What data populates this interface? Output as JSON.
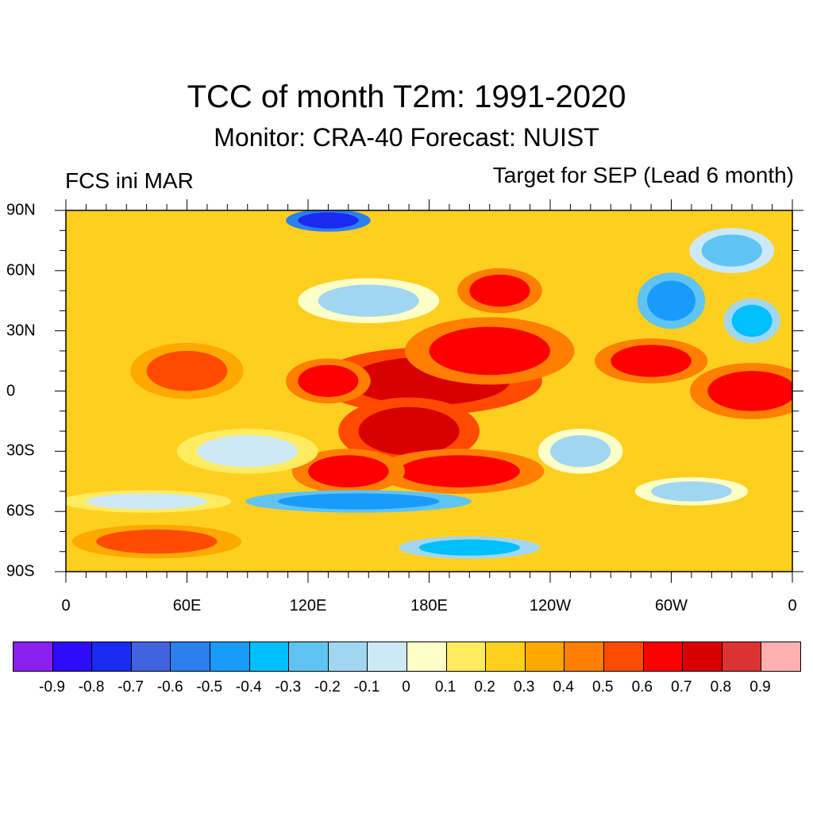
{
  "title": "TCC of month T2m: 1991-2020",
  "subtitle": "Monitor: CRA-40   Forecast: NUIST",
  "left_label": "FCS ini MAR",
  "right_label": "Target for SEP (Lead 6 month)",
  "y_ticks": [
    {
      "label": "90N",
      "lat": 90
    },
    {
      "label": "60N",
      "lat": 60
    },
    {
      "label": "30N",
      "lat": 30
    },
    {
      "label": "0",
      "lat": 0
    },
    {
      "label": "30S",
      "lat": -30
    },
    {
      "label": "60S",
      "lat": -60
    },
    {
      "label": "90S",
      "lat": -90
    }
  ],
  "x_ticks": [
    {
      "label": "0",
      "lon": 0
    },
    {
      "label": "60E",
      "lon": 60
    },
    {
      "label": "120E",
      "lon": 120
    },
    {
      "label": "180E",
      "lon": 180
    },
    {
      "label": "120W",
      "lon": 240
    },
    {
      "label": "60W",
      "lon": 300
    },
    {
      "label": "0",
      "lon": 360
    }
  ],
  "colorbar": {
    "colors": [
      "#8a20ee",
      "#2d0cf9",
      "#1a2af0",
      "#4263e0",
      "#2b7fef",
      "#199bfb",
      "#00bfff",
      "#60c4f2",
      "#a1d6f1",
      "#cde8f6",
      "#ffffc8",
      "#ffeb5f",
      "#ffcf20",
      "#ffa800",
      "#ff7f00",
      "#ff4a00",
      "#ff0000",
      "#d90000",
      "#db3333",
      "#ffb0b0"
    ],
    "labels": [
      "-0.9",
      "-0.8",
      "-0.7",
      "-0.6",
      "-0.5",
      "-0.4",
      "-0.3",
      "-0.2",
      "-0.1",
      "0",
      "0.1",
      "0.2",
      "0.3",
      "0.4",
      "0.5",
      "0.6",
      "0.7",
      "0.8",
      "0.9"
    ]
  },
  "map_regions": [
    {
      "lon": 180,
      "lat": 5,
      "rlon": 40,
      "rlat": 12,
      "level": 17
    },
    {
      "lon": 210,
      "lat": 20,
      "rlon": 30,
      "rlat": 12,
      "level": 16
    },
    {
      "lon": 170,
      "lat": -20,
      "rlon": 25,
      "rlat": 12,
      "level": 17
    },
    {
      "lon": 195,
      "lat": -40,
      "rlon": 30,
      "rlat": 8,
      "level": 16
    },
    {
      "lon": 140,
      "lat": -40,
      "rlon": 20,
      "rlat": 8,
      "level": 16
    },
    {
      "lon": 215,
      "lat": 50,
      "rlon": 15,
      "rlat": 8,
      "level": 16
    },
    {
      "lon": 340,
      "lat": 0,
      "rlon": 22,
      "rlat": 10,
      "level": 16
    },
    {
      "lon": 290,
      "lat": 15,
      "rlon": 20,
      "rlat": 8,
      "level": 16
    },
    {
      "lon": 130,
      "lat": 5,
      "rlon": 15,
      "rlat": 8,
      "level": 16
    },
    {
      "lon": 60,
      "lat": 10,
      "rlon": 20,
      "rlat": 10,
      "level": 15
    },
    {
      "lon": 45,
      "lat": -75,
      "rlon": 30,
      "rlat": 6,
      "level": 15
    },
    {
      "lon": 130,
      "lat": 85,
      "rlon": 15,
      "rlat": 4,
      "level": 2
    },
    {
      "lon": 145,
      "lat": -55,
      "rlon": 40,
      "rlat": 4,
      "level": 5
    },
    {
      "lon": 200,
      "lat": -78,
      "rlon": 25,
      "rlat": 4,
      "level": 6
    },
    {
      "lon": 150,
      "lat": 45,
      "rlon": 25,
      "rlat": 8,
      "level": 8
    },
    {
      "lon": 300,
      "lat": 45,
      "rlon": 12,
      "rlat": 10,
      "level": 5
    },
    {
      "lon": 340,
      "lat": 35,
      "rlon": 10,
      "rlat": 8,
      "level": 6
    },
    {
      "lon": 255,
      "lat": -30,
      "rlon": 15,
      "rlat": 8,
      "level": 8
    },
    {
      "lon": 310,
      "lat": -50,
      "rlon": 20,
      "rlat": 5,
      "level": 8
    },
    {
      "lon": 90,
      "lat": -30,
      "rlon": 25,
      "rlat": 8,
      "level": 9
    },
    {
      "lon": 40,
      "lat": -55,
      "rlon": 30,
      "rlat": 4,
      "level": 9
    },
    {
      "lon": 330,
      "lat": 70,
      "rlon": 15,
      "rlat": 8,
      "level": 7
    }
  ]
}
